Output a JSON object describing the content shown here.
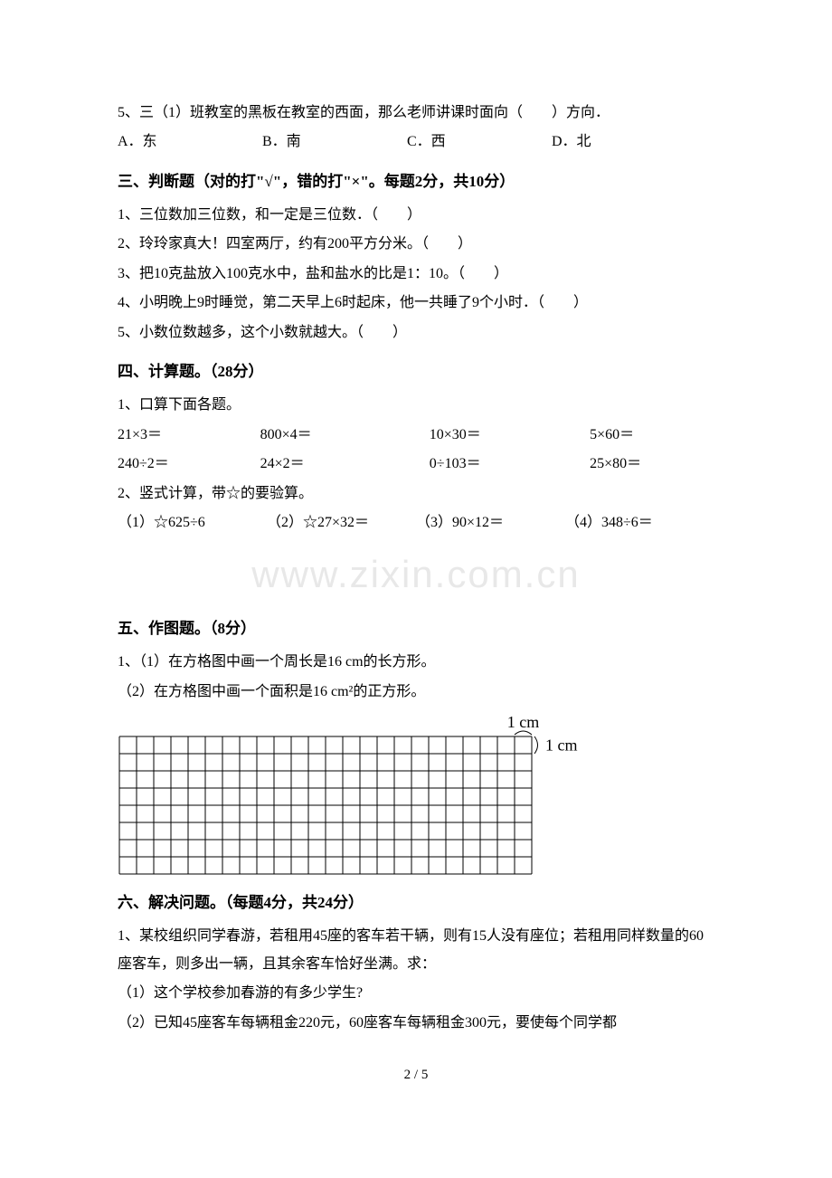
{
  "q2_5": {
    "stem": "5、三（1）班教室的黑板在教室的西面，那么老师讲课时面向（　　）方向．",
    "opt_a": "A．东",
    "opt_b": "B．南",
    "opt_c": "C．西",
    "opt_d": "D．北"
  },
  "sec3": {
    "heading": "三、判断题（对的打\"√\"，错的打\"×\"。每题2分，共10分）",
    "q1": "1、三位数加三位数，和一定是三位数．（　　）",
    "q2": "2、玲玲家真大！四室两厅，约有200平方分米。（　　）",
    "q3": "3、把10克盐放入100克水中，盐和盐水的比是1：10。（　　）",
    "q4": "4、小明晚上9时睡觉，第二天早上6时起床，他一共睡了9个小时．（　　）",
    "q5": "5、小数位数越多，这个小数就越大。（　　）"
  },
  "sec4": {
    "heading": "四、计算题。（28分）",
    "q1_stem": "1、口算下面各题。",
    "row1": {
      "c1": "21×3＝",
      "c2": "800×4＝",
      "c3": "10×30＝",
      "c4": "5×60＝"
    },
    "row2": {
      "c1": "240÷2＝",
      "c2": "24×2＝",
      "c3": "0÷103＝",
      "c4": "25×80＝"
    },
    "q2_stem": "2、竖式计算，带☆的要验算。",
    "vert": {
      "c1": "（1）☆625÷6",
      "c2": "（2）☆27×32＝",
      "c3": "（3）90×12＝",
      "c4": "（4）348÷6＝"
    }
  },
  "watermark": "www.zixin.com.cn",
  "sec5": {
    "heading": "五、作图题。（8分）",
    "q1_1": "1、（1）在方格图中画一个周长是16 cm的长方形。",
    "q1_2": "（2）在方格图中画一个面积是16 cm²的正方形。",
    "grid": {
      "cols": 24,
      "rows": 8,
      "cell_size": 19,
      "stroke": "#000000",
      "stroke_width": 1,
      "label_top": "1 cm",
      "label_right": "1 cm",
      "brace_color": "#000000",
      "label_fontsize": 18
    }
  },
  "sec6": {
    "heading": "六、解决问题。（每题4分，共24分）",
    "q1_stem": "1、某校组织同学春游，若租用45座的客车若干辆，则有15人没有座位；若租用同样数量的60座客车，则多出一辆，且其余客车恰好坐满。求：",
    "q1_1": "（1）这个学校参加春游的有多少学生?",
    "q1_2": "（2）已知45座客车每辆租金220元，60座客车每辆租金300元，要使每个同学都"
  },
  "page_number": "2 / 5"
}
